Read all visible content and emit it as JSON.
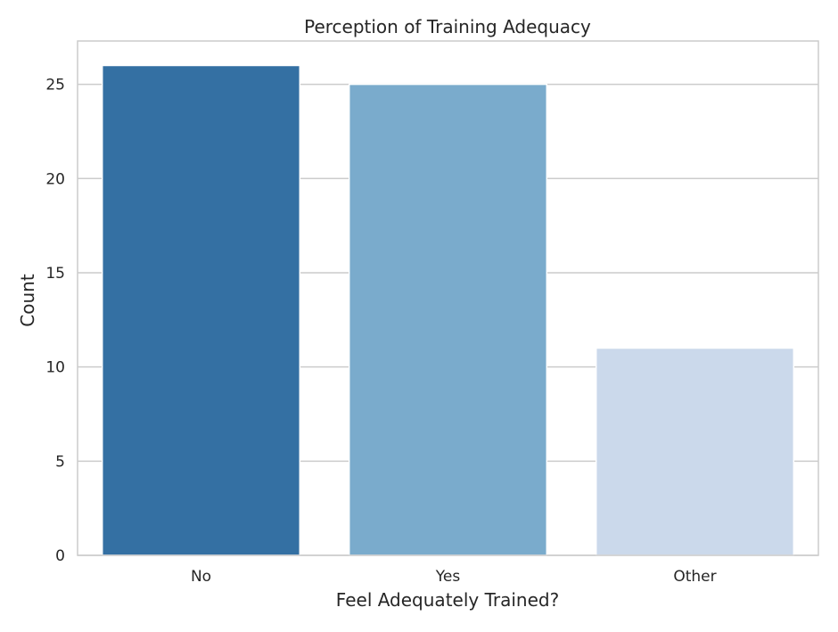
{
  "chart_data": {
    "type": "bar",
    "title": "Perception of Training Adequacy",
    "xlabel": "Feel Adequately Trained?",
    "ylabel": "Count",
    "categories": [
      "No",
      "Yes",
      "Other"
    ],
    "values": [
      26,
      25,
      11
    ],
    "colors": [
      "#3470a3",
      "#7aabcc",
      "#cbd9eb"
    ],
    "ylim": [
      0,
      27.3
    ],
    "yticks": [
      0,
      5,
      10,
      15,
      20,
      25
    ],
    "grid": true,
    "grid_color": "#cccccc",
    "frame_color": "#cccccc"
  }
}
